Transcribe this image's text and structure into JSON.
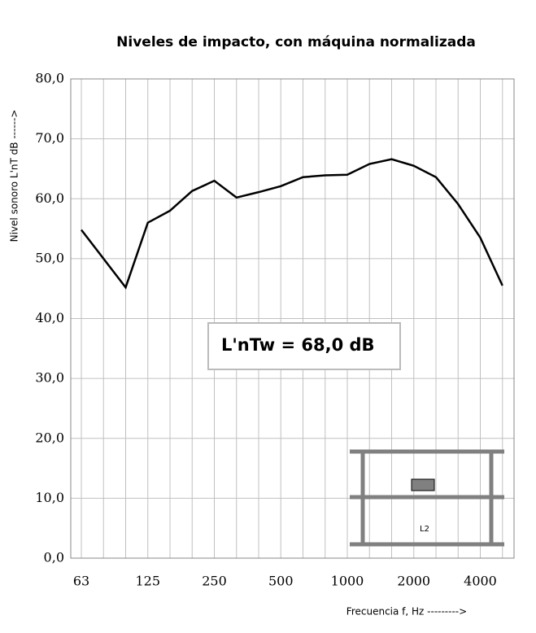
{
  "chart_data": {
    "type": "line",
    "title": "Niveles de impacto, con máquina normalizada",
    "y_label": "Nivel    sonoro    L'nT    dB ------>",
    "x_label": "Frecuencia f, Hz  --------->",
    "annotation": "L'nTw  = 68,0 dB",
    "inset_label": "L2",
    "categories": [
      "63",
      null,
      null,
      "125",
      null,
      null,
      "250",
      null,
      null,
      "500",
      null,
      null,
      "1000",
      null,
      null,
      "2000",
      null,
      null,
      "4000",
      null
    ],
    "series": [
      {
        "name": "L'nT",
        "color": "#000000",
        "values": [
          54.8,
          50.0,
          45.2,
          56.0,
          58.0,
          61.3,
          63.0,
          60.2,
          61.1,
          62.1,
          63.6,
          63.9,
          64.0,
          65.8,
          66.6,
          65.5,
          63.6,
          59.1,
          53.5,
          45.5
        ]
      }
    ],
    "ylim": [
      0,
      80
    ],
    "yticks": [
      {
        "value": 0,
        "label": "0,0"
      },
      {
        "value": 10,
        "label": "10,0"
      },
      {
        "value": 20,
        "label": "20,0"
      },
      {
        "value": 30,
        "label": "30,0"
      },
      {
        "value": 40,
        "label": "40,0"
      },
      {
        "value": 50,
        "label": "50,0"
      },
      {
        "value": 60,
        "label": "60,0"
      },
      {
        "value": 70,
        "label": "70,0"
      },
      {
        "value": 80,
        "label": "80,0"
      }
    ],
    "grid": true
  }
}
